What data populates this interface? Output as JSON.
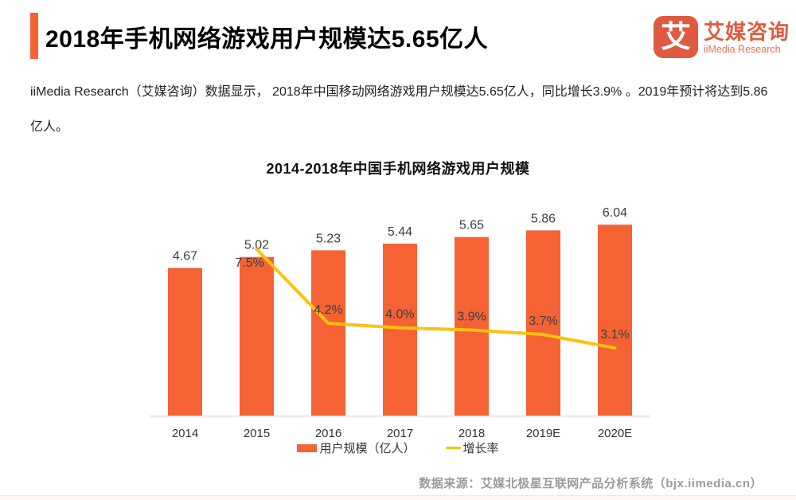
{
  "header": {
    "title": "2018年手机网络游戏用户规模达5.65亿人"
  },
  "logo": {
    "mark_glyph": "艾",
    "name_cn": "艾媒咨询",
    "name_en": "iiMedia Research",
    "brand_color": "#e05a41"
  },
  "summary": {
    "text": "iiMedia Research（艾媒咨询）数据显示， 2018年中国移动网络游戏用户规模达5.65亿人，同比增长3.9% 。2019年预计将达到5.86亿人。"
  },
  "chart_data": {
    "type": "bar",
    "combo": "bar+line",
    "title": "2014-2018年中国手机网络游戏用户规模",
    "categories": [
      "2014",
      "2015",
      "2016",
      "2017",
      "2018",
      "2019E",
      "2020E"
    ],
    "series": [
      {
        "name": "用户规模（亿人）",
        "type": "bar",
        "color": "#f56234",
        "values": [
          4.67,
          5.02,
          5.23,
          5.44,
          5.65,
          5.86,
          6.04
        ],
        "value_labels": [
          "4.67",
          "5.02",
          "5.23",
          "5.44",
          "5.65",
          "5.86",
          "6.04"
        ]
      },
      {
        "name": "增长率",
        "type": "line",
        "color": "#fec10d",
        "values": [
          null,
          7.5,
          4.2,
          4.0,
          3.9,
          3.7,
          3.1
        ],
        "value_labels": [
          "",
          "7.5%",
          "4.2%",
          "4.0%",
          "3.9%",
          "3.7%",
          "3.1%"
        ]
      }
    ],
    "legend": [
      "用户规模（亿人）",
      "增长率"
    ],
    "legend_position": "bottom",
    "grid": false,
    "bar_axis_range": [
      0,
      6.5
    ],
    "line_axis_range_pct": [
      0,
      8
    ],
    "label_color": "#3d3d3d",
    "axis_color": "#ebebeb"
  },
  "footer": {
    "source": "数据来源：艾媒北极星互联网产品分析系统（bjx.iimedia.cn）"
  }
}
